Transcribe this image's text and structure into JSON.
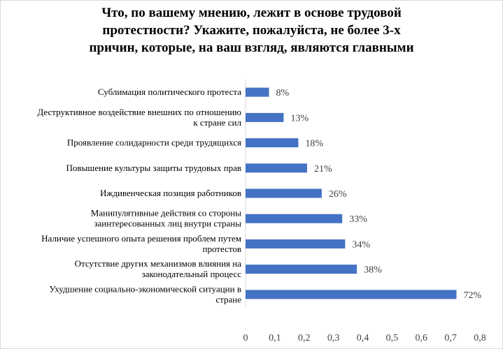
{
  "chart_data": {
    "type": "bar",
    "orientation": "horizontal",
    "title": "Что, по вашему мнению, лежит в основе трудовой протестности? Укажите, пожалуйста, не более 3-х причин, которые, на ваш взгляд, являются главными",
    "title_lines": [
      "Что, по вашему мнению, лежит в основе трудовой",
      "протестности? Укажите, пожалуйста, не более 3-х",
      "причин, которые, на ваш взгляд, являются главными"
    ],
    "categories": [
      "Сублимация политического протеста",
      "Деструктивное воздействие внешних по отношению к стране сил",
      "Проявление солидарности среди трудящихся",
      "Повышение культуры защиты трудовых прав",
      "Иждивенческая позиция работников",
      "Манипулятивные действия со стороны заинтересованных лиц внутри страны",
      "Наличие успешного опыта решения проблем путем протестов",
      "Отсутствие других механизмов влияния на законодательный процесс",
      "Ухудшение социально-экономической ситуации в стране"
    ],
    "category_lines": [
      [
        "Сублимация политического протеста"
      ],
      [
        "Деструктивное воздействие внешних по отношению",
        "к стране сил"
      ],
      [
        "Проявление солидарности среди трудящихся"
      ],
      [
        "Повышение культуры защиты трудовых прав"
      ],
      [
        "Иждивенческая позиция работников"
      ],
      [
        "Манипулятивные действия со стороны",
        "заинтересованных лиц внутри страны"
      ],
      [
        "Наличие успешного опыта решения проблем путем",
        "протестов"
      ],
      [
        "Отсутствие других механизмов влияния на",
        "законодательный процесс"
      ],
      [
        "Ухудшение социально-экономической ситуации в",
        "стране"
      ]
    ],
    "values": [
      0.08,
      0.13,
      0.18,
      0.21,
      0.26,
      0.33,
      0.34,
      0.38,
      0.72
    ],
    "data_labels": [
      "8%",
      "13%",
      "18%",
      "21%",
      "26%",
      "33%",
      "34%",
      "38%",
      "72%"
    ],
    "xlim": [
      0,
      0.8
    ],
    "xticks": [
      "0",
      "0,1",
      "0,2",
      "0,3",
      "0,4",
      "0,5",
      "0,6",
      "0,7",
      "0,8"
    ],
    "bar_color": "#4472c4",
    "grid": false,
    "legend": "none"
  }
}
